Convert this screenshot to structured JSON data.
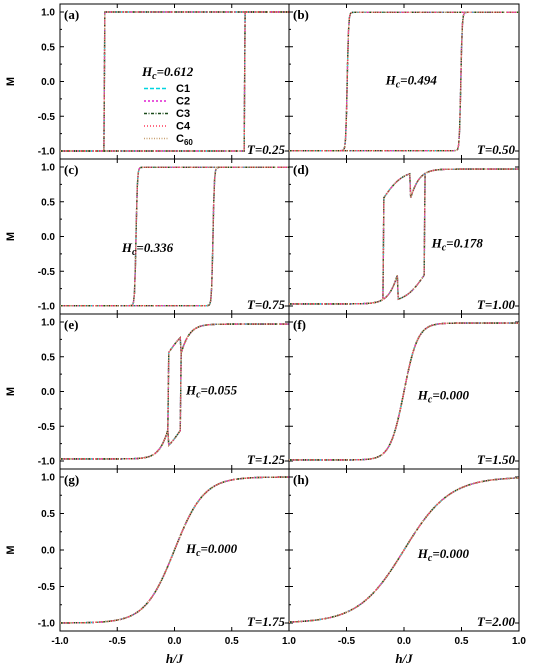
{
  "chart_data": [
    {
      "type": "line",
      "panel_label": "(a)",
      "T_label": "T=0.25",
      "Hc_label": "=0.612",
      "Hc": 0.612,
      "model": "square",
      "ylabel": "M",
      "xlabel": "",
      "xlim": [
        -1,
        1
      ],
      "ylim": [
        -1.05,
        1.05
      ],
      "legend": {
        "title": "=0.612",
        "entries": [
          "C1",
          "C2",
          "C3",
          "C4",
          "C60"
        ],
        "colors": [
          "#00d5e0",
          "#e020d0",
          "#1a4a1a",
          "#ff3a5a",
          "#c8a070"
        ]
      }
    },
    {
      "type": "line",
      "panel_label": "(b)",
      "T_label": "T=0.50",
      "Hc_label": "=0.494",
      "Hc": 0.494,
      "model": "sharp",
      "ylabel": "",
      "xlabel": "",
      "xlim": [
        -1,
        1
      ],
      "ylim": [
        -1.05,
        1.05
      ]
    },
    {
      "type": "line",
      "panel_label": "(c)",
      "T_label": "T=0.75",
      "Hc_label": "=0.336",
      "Hc": 0.336,
      "model": "sharp",
      "ylabel": "M",
      "xlabel": "",
      "xlim": [
        -1,
        1
      ],
      "ylim": [
        -1.05,
        1.05
      ]
    },
    {
      "type": "line",
      "panel_label": "(d)",
      "T_label": "T=1.00",
      "Hc_label": "=0.178",
      "Hc": 0.178,
      "model": "rounded",
      "ylabel": "",
      "xlabel": "",
      "xlim": [
        -1,
        1
      ],
      "ylim": [
        -1.05,
        1.05
      ]
    },
    {
      "type": "line",
      "panel_label": "(e)",
      "T_label": "T=1.25",
      "Hc_label": "=0.055",
      "Hc": 0.055,
      "model": "rounded",
      "ylabel": "M",
      "xlabel": "",
      "xlim": [
        -1,
        1
      ],
      "ylim": [
        -1.05,
        1.05
      ]
    },
    {
      "type": "line",
      "panel_label": "(f)",
      "T_label": "T=1.50",
      "Hc_label": "=0.000",
      "Hc": 0.0,
      "model": "tanh",
      "ylabel": "",
      "xlabel": "",
      "xlim": [
        -1,
        1
      ],
      "ylim": [
        -1.05,
        1.05
      ]
    },
    {
      "type": "line",
      "panel_label": "(g)",
      "T_label": "T=1.75",
      "Hc_label": "=0.000",
      "Hc": 0.0,
      "model": "tanh",
      "ylabel": "M",
      "xlabel": "h/J",
      "xlim": [
        -1,
        1
      ],
      "ylim": [
        -1.05,
        1.05
      ]
    },
    {
      "type": "line",
      "panel_label": "(h)",
      "T_label": "T=2.00",
      "Hc_label": "=0.000",
      "Hc": 0.0,
      "model": "tanh",
      "ylabel": "",
      "xlabel": "h/J",
      "xlim": [
        -1,
        1
      ],
      "ylim": [
        -1.05,
        1.05
      ]
    }
  ],
  "yticks": [
    "1.0",
    "0.5",
    "0.0",
    "-0.5",
    "-1.0"
  ],
  "xticks": [
    "-1.0",
    "-0.5",
    "0.0",
    "0.5",
    "1.0"
  ],
  "hc_symbol": "H",
  "hc_subscript": "c",
  "series_colors": {
    "C1": "#00d5e0",
    "C2": "#e020d0",
    "C3": "#1a4a1a",
    "C4": "#ff3a5a",
    "C60": "#c8a070"
  }
}
